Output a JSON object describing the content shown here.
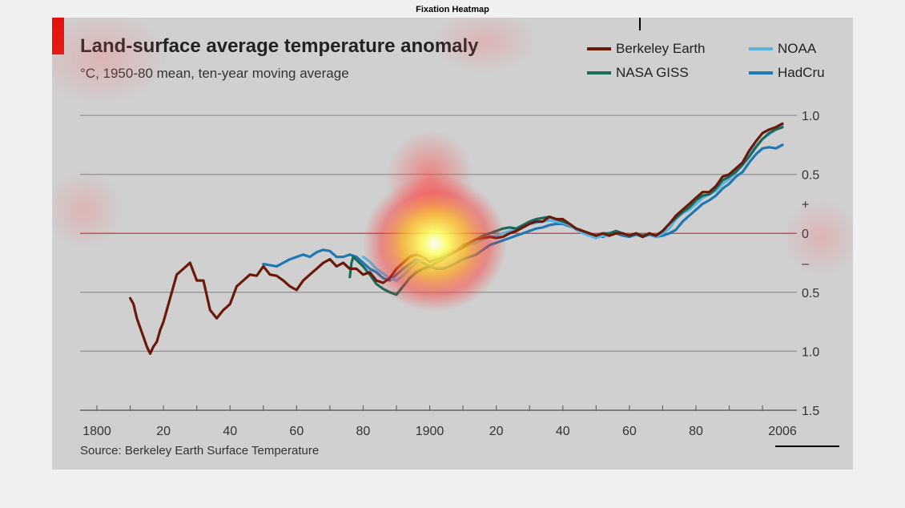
{
  "figure_title": "Fixation Heatmap",
  "chart_data": {
    "type": "line",
    "title": "Land-surface average temperature anomaly",
    "subtitle": "°C, 1950-80 mean, ten-year moving average",
    "source": "Source: Berkeley Earth Surface Temperature",
    "xlim": [
      1800,
      2006
    ],
    "ylim": [
      -1.5,
      1.0
    ],
    "x_ticks": [
      {
        "value": 1800,
        "label": "1800"
      },
      {
        "value": 1820,
        "label": "20"
      },
      {
        "value": 1840,
        "label": "40"
      },
      {
        "value": 1860,
        "label": "60"
      },
      {
        "value": 1880,
        "label": "80"
      },
      {
        "value": 1900,
        "label": "1900"
      },
      {
        "value": 1920,
        "label": "20"
      },
      {
        "value": 1940,
        "label": "40"
      },
      {
        "value": 1960,
        "label": "60"
      },
      {
        "value": 1980,
        "label": "80"
      },
      {
        "value": 2006,
        "label": "2006"
      }
    ],
    "y_ticks": [
      {
        "value": 1.0,
        "label": "1.0"
      },
      {
        "value": 0.5,
        "label": "0.5"
      },
      {
        "value": 0.25,
        "label": "+"
      },
      {
        "value": 0,
        "label": "0"
      },
      {
        "value": -0.25,
        "label": "–"
      },
      {
        "value": -0.5,
        "label": "0.5"
      },
      {
        "value": -1.0,
        "label": "1.0"
      },
      {
        "value": -1.5,
        "label": "1.5"
      }
    ],
    "series": [
      {
        "name": "Berkeley Earth",
        "color": "#6b1a0a",
        "x": [
          1810,
          1811,
          1812,
          1813,
          1814,
          1815,
          1816,
          1817,
          1818,
          1819,
          1820,
          1822,
          1824,
          1826,
          1828,
          1830,
          1832,
          1834,
          1836,
          1838,
          1840,
          1842,
          1844,
          1846,
          1848,
          1850,
          1852,
          1854,
          1856,
          1858,
          1860,
          1862,
          1864,
          1866,
          1868,
          1870,
          1872,
          1874,
          1876,
          1878,
          1880,
          1882,
          1884,
          1886,
          1888,
          1890,
          1892,
          1894,
          1896,
          1898,
          1900,
          1902,
          1904,
          1906,
          1908,
          1910,
          1912,
          1914,
          1916,
          1918,
          1920,
          1922,
          1924,
          1926,
          1928,
          1930,
          1932,
          1934,
          1936,
          1938,
          1940,
          1942,
          1944,
          1946,
          1948,
          1950,
          1952,
          1954,
          1956,
          1958,
          1960,
          1962,
          1964,
          1966,
          1968,
          1970,
          1972,
          1974,
          1976,
          1978,
          1980,
          1982,
          1984,
          1986,
          1988,
          1990,
          1992,
          1994,
          1996,
          1998,
          2000,
          2002,
          2004,
          2006
        ],
        "values": [
          -0.55,
          -0.6,
          -0.72,
          -0.8,
          -0.88,
          -0.96,
          -1.02,
          -0.96,
          -0.92,
          -0.82,
          -0.75,
          -0.55,
          -0.35,
          -0.3,
          -0.25,
          -0.4,
          -0.4,
          -0.65,
          -0.72,
          -0.65,
          -0.6,
          -0.45,
          -0.4,
          -0.35,
          -0.36,
          -0.28,
          -0.35,
          -0.36,
          -0.4,
          -0.45,
          -0.48,
          -0.4,
          -0.35,
          -0.3,
          -0.25,
          -0.22,
          -0.28,
          -0.25,
          -0.3,
          -0.3,
          -0.35,
          -0.33,
          -0.4,
          -0.42,
          -0.38,
          -0.3,
          -0.25,
          -0.2,
          -0.18,
          -0.2,
          -0.24,
          -0.22,
          -0.2,
          -0.18,
          -0.15,
          -0.12,
          -0.08,
          -0.05,
          -0.04,
          -0.03,
          -0.04,
          -0.03,
          0.0,
          0.02,
          0.05,
          0.08,
          0.1,
          0.1,
          0.14,
          0.12,
          0.12,
          0.08,
          0.04,
          0.02,
          0.0,
          -0.02,
          0.0,
          -0.02,
          0.0,
          0.0,
          -0.02,
          0.0,
          -0.03,
          0.0,
          -0.02,
          0.02,
          0.08,
          0.15,
          0.2,
          0.25,
          0.3,
          0.35,
          0.35,
          0.4,
          0.48,
          0.5,
          0.55,
          0.6,
          0.7,
          0.78,
          0.85,
          0.88,
          0.9,
          0.93
        ]
      },
      {
        "name": "NASA GISS",
        "color": "#1a6b5a",
        "x": [
          1876,
          1876.5,
          1877,
          1880,
          1882,
          1884,
          1886,
          1888,
          1890,
          1892,
          1894,
          1896,
          1898,
          1900,
          1902,
          1904,
          1906,
          1908,
          1910,
          1912,
          1914,
          1916,
          1918,
          1920,
          1922,
          1924,
          1926,
          1928,
          1930,
          1932,
          1934,
          1936,
          1938,
          1940,
          1942,
          1944,
          1946,
          1948,
          1950,
          1952,
          1954,
          1956,
          1958,
          1960,
          1962,
          1964,
          1966,
          1968,
          1970,
          1972,
          1974,
          1976,
          1978,
          1980,
          1982,
          1984,
          1986,
          1988,
          1990,
          1992,
          1994,
          1996,
          1998,
          2000,
          2002,
          2004,
          2006
        ],
        "values": [
          -0.37,
          -0.25,
          -0.2,
          -0.28,
          -0.35,
          -0.43,
          -0.47,
          -0.5,
          -0.52,
          -0.45,
          -0.38,
          -0.33,
          -0.3,
          -0.28,
          -0.25,
          -0.22,
          -0.18,
          -0.15,
          -0.1,
          -0.08,
          -0.05,
          -0.02,
          0.0,
          0.02,
          0.04,
          0.05,
          0.04,
          0.07,
          0.1,
          0.12,
          0.13,
          0.14,
          0.12,
          0.1,
          0.08,
          0.04,
          0.02,
          0.0,
          -0.02,
          0.0,
          0.0,
          0.02,
          0.0,
          -0.02,
          0.0,
          -0.02,
          0.0,
          -0.02,
          0.02,
          0.08,
          0.13,
          0.18,
          0.22,
          0.28,
          0.32,
          0.33,
          0.38,
          0.45,
          0.48,
          0.52,
          0.58,
          0.65,
          0.73,
          0.8,
          0.85,
          0.88,
          0.9
        ]
      },
      {
        "name": "NOAA",
        "color": "#5ab4e0",
        "x": [
          1880,
          1882,
          1884,
          1886,
          1888,
          1890,
          1892,
          1894,
          1896,
          1898,
          1900,
          1902,
          1904,
          1906,
          1908,
          1910,
          1912,
          1914,
          1916,
          1918,
          1920,
          1922,
          1924,
          1926,
          1928,
          1930,
          1932,
          1934,
          1936,
          1938,
          1940,
          1942,
          1944,
          1946,
          1948,
          1950,
          1952,
          1954,
          1956,
          1958,
          1960,
          1962,
          1964,
          1966,
          1968,
          1970,
          1972,
          1974,
          1976,
          1978,
          1980,
          1982,
          1984,
          1986,
          1988,
          1990,
          1992,
          1994,
          1996,
          1998,
          2000,
          2002,
          2004,
          2006
        ],
        "values": [
          -0.2,
          -0.24,
          -0.3,
          -0.34,
          -0.38,
          -0.4,
          -0.36,
          -0.3,
          -0.25,
          -0.22,
          -0.2,
          -0.2,
          -0.18,
          -0.16,
          -0.14,
          -0.12,
          -0.1,
          -0.08,
          -0.05,
          -0.03,
          -0.02,
          0.0,
          0.02,
          0.03,
          0.05,
          0.08,
          0.09,
          0.1,
          0.11,
          0.1,
          0.09,
          0.07,
          0.03,
          0.0,
          -0.02,
          -0.04,
          -0.02,
          -0.02,
          0.0,
          0.0,
          -0.02,
          0.0,
          -0.02,
          0.0,
          -0.03,
          0.0,
          0.04,
          0.12,
          0.17,
          0.2,
          0.25,
          0.3,
          0.33,
          0.36,
          0.42,
          0.46,
          0.52,
          0.58,
          0.66,
          0.74,
          0.8,
          0.84,
          0.88,
          0.92
        ]
      },
      {
        "name": "HadCru",
        "color": "#1f78b4",
        "x": [
          1850,
          1852,
          1854,
          1856,
          1858,
          1860,
          1862,
          1864,
          1866,
          1868,
          1870,
          1872,
          1874,
          1876,
          1878,
          1880,
          1882,
          1884,
          1886,
          1888,
          1890,
          1892,
          1894,
          1896,
          1898,
          1900,
          1902,
          1904,
          1906,
          1908,
          1910,
          1912,
          1914,
          1916,
          1918,
          1920,
          1922,
          1924,
          1926,
          1928,
          1930,
          1932,
          1934,
          1936,
          1938,
          1940,
          1942,
          1944,
          1946,
          1948,
          1950,
          1952,
          1954,
          1956,
          1958,
          1960,
          1962,
          1964,
          1966,
          1968,
          1970,
          1972,
          1974,
          1976,
          1978,
          1980,
          1982,
          1984,
          1986,
          1988,
          1990,
          1992,
          1994,
          1996,
          1998,
          2000,
          2002,
          2004,
          2006
        ],
        "values": [
          -0.26,
          -0.27,
          -0.28,
          -0.25,
          -0.22,
          -0.2,
          -0.18,
          -0.2,
          -0.16,
          -0.14,
          -0.15,
          -0.2,
          -0.2,
          -0.18,
          -0.2,
          -0.25,
          -0.3,
          -0.33,
          -0.38,
          -0.4,
          -0.35,
          -0.3,
          -0.26,
          -0.22,
          -0.25,
          -0.28,
          -0.3,
          -0.3,
          -0.28,
          -0.25,
          -0.22,
          -0.2,
          -0.18,
          -0.14,
          -0.1,
          -0.08,
          -0.06,
          -0.04,
          -0.02,
          0.0,
          0.02,
          0.04,
          0.05,
          0.07,
          0.08,
          0.08,
          0.06,
          0.04,
          0.02,
          0.0,
          -0.02,
          -0.03,
          -0.01,
          0.0,
          -0.02,
          -0.03,
          -0.01,
          -0.03,
          -0.01,
          -0.03,
          -0.02,
          0.0,
          0.03,
          0.1,
          0.15,
          0.2,
          0.25,
          0.28,
          0.32,
          0.38,
          0.42,
          0.48,
          0.52,
          0.6,
          0.67,
          0.72,
          0.73,
          0.72,
          0.75
        ]
      }
    ],
    "legend": "top-right",
    "grid": true
  },
  "heatmap": {
    "hotspot_label": "gaze fixation heatmap overlay"
  }
}
